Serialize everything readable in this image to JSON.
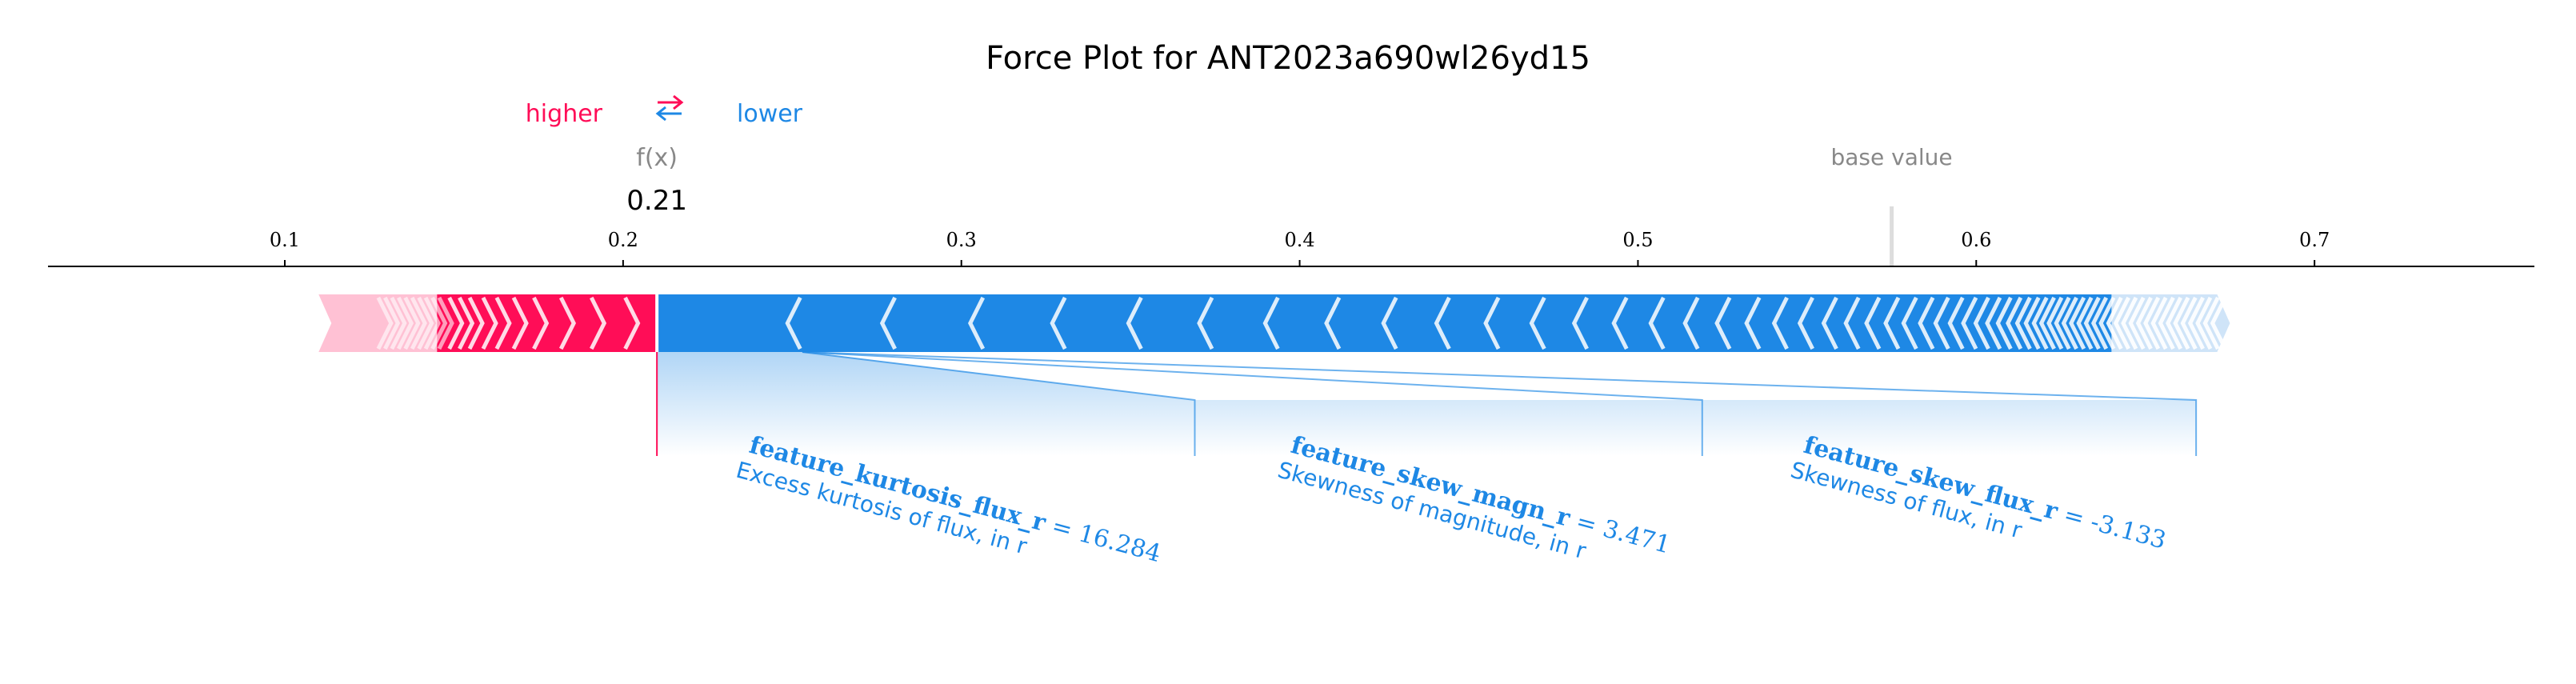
{
  "title": "Force Plot for ANT2023a690wl26yd15",
  "legend": {
    "higher": "higher",
    "arrows": "⇄",
    "lower": "lower"
  },
  "fx_label": "f(x)",
  "base_label": "base value",
  "colors": {
    "positive": "#ff0d57",
    "negative": "#1e88e5",
    "axis": "#000000",
    "muted": "#888888"
  },
  "chart_data": {
    "type": "force",
    "title": "Force Plot for ANT2023a690wl26yd15",
    "xlim": [
      0.03,
      0.765
    ],
    "ticks": [
      0.1,
      0.2,
      0.3,
      0.4,
      0.5,
      0.6,
      0.7
    ],
    "tick_labels": [
      "0.1",
      "0.2",
      "0.3",
      "0.4",
      "0.5",
      "0.6",
      "0.7"
    ],
    "fx": 0.21,
    "fx_text": "0.21",
    "base_value": 0.575,
    "positive_range": [
      0.11,
      0.21
    ],
    "negative_range": [
      0.21,
      0.675
    ],
    "features": [
      {
        "name": "feature_kurtosis_flux_r",
        "value": "16.284",
        "description": "Excess kurtosis of flux, in r",
        "start": 0.21,
        "end": 0.369,
        "direction": "lower"
      },
      {
        "name": "feature_skew_magn_r",
        "value": "3.471",
        "description": "Skewness of magnitude, in r",
        "start": 0.369,
        "end": 0.519,
        "direction": "lower"
      },
      {
        "name": "feature_skew_flux_r",
        "value": "-3.133",
        "description": "Skewness of flux, in r",
        "start": 0.519,
        "end": 0.665,
        "direction": "lower"
      }
    ]
  }
}
